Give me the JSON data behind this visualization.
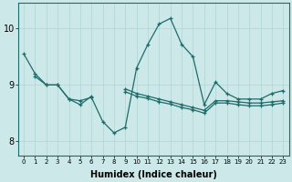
{
  "xlabel": "Humidex (Indice chaleur)",
  "bg_color": "#cce8e8",
  "line_color": "#1e6b6b",
  "grid_color": "#b0d4d4",
  "xlim": [
    -0.5,
    23.5
  ],
  "ylim": [
    7.75,
    10.45
  ],
  "yticks": [
    8,
    9,
    10
  ],
  "xticks": [
    0,
    1,
    2,
    3,
    4,
    5,
    6,
    7,
    8,
    9,
    10,
    11,
    12,
    13,
    14,
    15,
    16,
    17,
    18,
    19,
    20,
    21,
    22,
    23
  ],
  "series": [
    {
      "x": [
        0,
        1,
        2,
        3,
        4,
        5,
        6,
        7,
        8,
        9,
        10,
        11,
        12,
        13,
        14,
        15,
        16,
        17,
        18,
        19,
        20,
        21,
        22,
        23
      ],
      "y": [
        9.55,
        9.2,
        9.0,
        9.0,
        8.75,
        8.72,
        8.78,
        8.35,
        8.15,
        8.25,
        9.3,
        9.72,
        10.08,
        10.18,
        9.72,
        9.5,
        8.65,
        9.05,
        8.85,
        8.75,
        8.75,
        8.75,
        8.85,
        8.9
      ]
    },
    {
      "x": [
        1,
        2,
        3,
        4,
        5,
        6
      ],
      "y": [
        9.15,
        9.0,
        9.0,
        8.75,
        8.65,
        8.8
      ]
    },
    {
      "x": [
        9,
        10,
        11,
        12,
        13,
        14,
        15,
        16,
        17,
        18,
        19,
        20,
        21,
        22,
        23
      ],
      "y": [
        8.93,
        8.85,
        8.8,
        8.75,
        8.7,
        8.65,
        8.6,
        8.55,
        8.72,
        8.72,
        8.7,
        8.68,
        8.68,
        8.7,
        8.72
      ]
    },
    {
      "x": [
        9,
        10,
        11,
        12,
        13,
        14,
        15,
        16,
        17,
        18,
        19,
        20,
        21,
        22,
        23
      ],
      "y": [
        8.88,
        8.8,
        8.76,
        8.7,
        8.66,
        8.6,
        8.56,
        8.5,
        8.68,
        8.68,
        8.65,
        8.63,
        8.63,
        8.65,
        8.68
      ]
    }
  ],
  "figsize": [
    3.2,
    2.0
  ],
  "dpi": 100
}
